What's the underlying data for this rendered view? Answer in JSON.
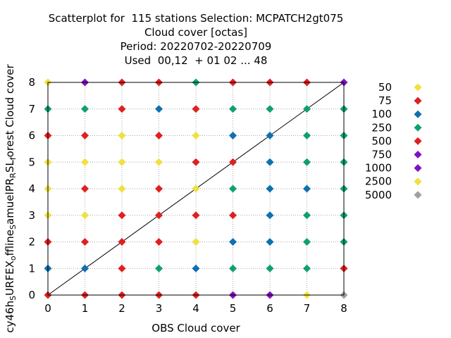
{
  "title_lines": [
    "Scatterplot for  115 stations Selection: MCPATCH2gt075",
    "Cloud cover [octas]",
    "Period: 20220702-20220709",
    "Used  00,12  + 01 02 ... 48"
  ],
  "colors": {
    "50": "#f0e040",
    "75": "#e02020",
    "100": "#1070b0",
    "250": "#10a070",
    "500": "#e02020",
    "750": "#8010c0",
    "1000": "#8010c0",
    "2500": "#f0e040",
    "5000": "#a0a0a0"
  },
  "chart_data": {
    "type": "scatter",
    "xlabel": "OBS Cloud cover",
    "ylabel_parts": [
      [
        "cy46h",
        ""
      ],
      [
        "S",
        "sub"
      ],
      [
        "URFEX",
        ""
      ],
      [
        "o",
        "sub"
      ],
      [
        "ffline",
        ""
      ],
      [
        "S",
        "sub"
      ],
      [
        "amuelPR",
        ""
      ],
      [
        "R",
        "sub"
      ],
      [
        "SL",
        ""
      ],
      [
        "f",
        "sub"
      ],
      [
        "orest Cloud cover",
        ""
      ]
    ],
    "xlim": [
      0,
      8
    ],
    "ylim": [
      0,
      8
    ],
    "xticks": [
      "0",
      "1",
      "2",
      "3",
      "4",
      "5",
      "6",
      "7",
      "8"
    ],
    "yticks": [
      "0",
      "1",
      "2",
      "3",
      "4",
      "5",
      "6",
      "7",
      "8"
    ],
    "grid": true,
    "diagonal": true,
    "legend_position": "right",
    "legend": [
      "50",
      "75",
      "100",
      "250",
      "500",
      "750",
      "1000",
      "2500",
      "5000"
    ],
    "grid_counts": [
      [
        "500",
        "500",
        "500",
        "500",
        "500",
        "750",
        "750",
        "2500",
        "5000"
      ],
      [
        "100",
        "100",
        "500",
        "250",
        "100",
        "250",
        "250",
        "250",
        "500"
      ],
      [
        "500",
        "500",
        "500",
        "500",
        "50",
        "100",
        "100",
        "250",
        "250"
      ],
      [
        "50",
        "50",
        "500",
        "500",
        "500",
        "500",
        "100",
        "250",
        "250"
      ],
      [
        "50",
        "500",
        "50",
        "500",
        "50",
        "250",
        "100",
        "100",
        "250"
      ],
      [
        "50",
        "50",
        "50",
        "50",
        "500",
        "500",
        "100",
        "250",
        "250"
      ],
      [
        "500",
        "500",
        "50",
        "500",
        "50",
        "100",
        "100",
        "250",
        "250"
      ],
      [
        "250",
        "250",
        "500",
        "100",
        "500",
        "250",
        "250",
        "250",
        "250"
      ],
      [
        "50",
        "750",
        "500",
        "500",
        "250",
        "500",
        "500",
        "500",
        "750"
      ]
    ]
  }
}
